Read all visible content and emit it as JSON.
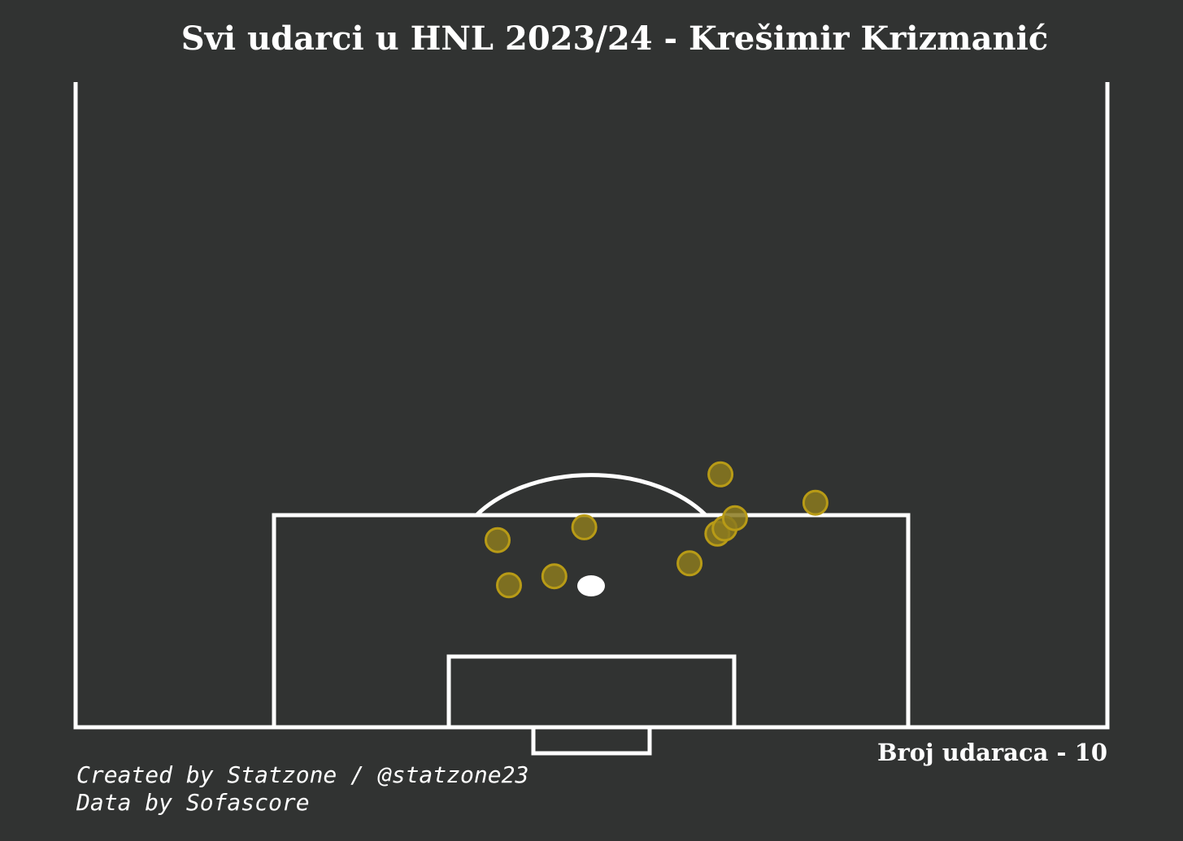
{
  "title": "Svi udarci u HNL 2023/24 - Krešimir Krizmanić",
  "shot_count_label": "Broj udaraca - 10",
  "credits": {
    "created": "Created by Statzone / @statzone23",
    "data": "Data by Sofascore"
  },
  "colors": {
    "background": "#313332",
    "lines": "#ffffff",
    "shot_fill": "#8b7a1f",
    "shot_edge": "#b89b16"
  },
  "chart_data": {
    "type": "scatter",
    "title": "Svi udarci u HNL 2023/24 - Krešimir Krizmanić",
    "pitch": "half-pitch, vertical, Opta-style coordinates (0-100)",
    "x_range": [
      0,
      100
    ],
    "y_range": [
      50,
      100
    ],
    "series": [
      {
        "points": [
          {
            "x": 42.0,
            "y": 89.0
          },
          {
            "x": 46.4,
            "y": 88.3
          },
          {
            "x": 40.9,
            "y": 85.5
          },
          {
            "x": 49.3,
            "y": 84.5
          },
          {
            "x": 59.5,
            "y": 87.3
          },
          {
            "x": 62.2,
            "y": 85.0
          },
          {
            "x": 62.9,
            "y": 84.6
          },
          {
            "x": 63.9,
            "y": 83.8
          },
          {
            "x": 71.7,
            "y": 82.6
          },
          {
            "x": 62.5,
            "y": 80.4
          }
        ]
      }
    ]
  }
}
